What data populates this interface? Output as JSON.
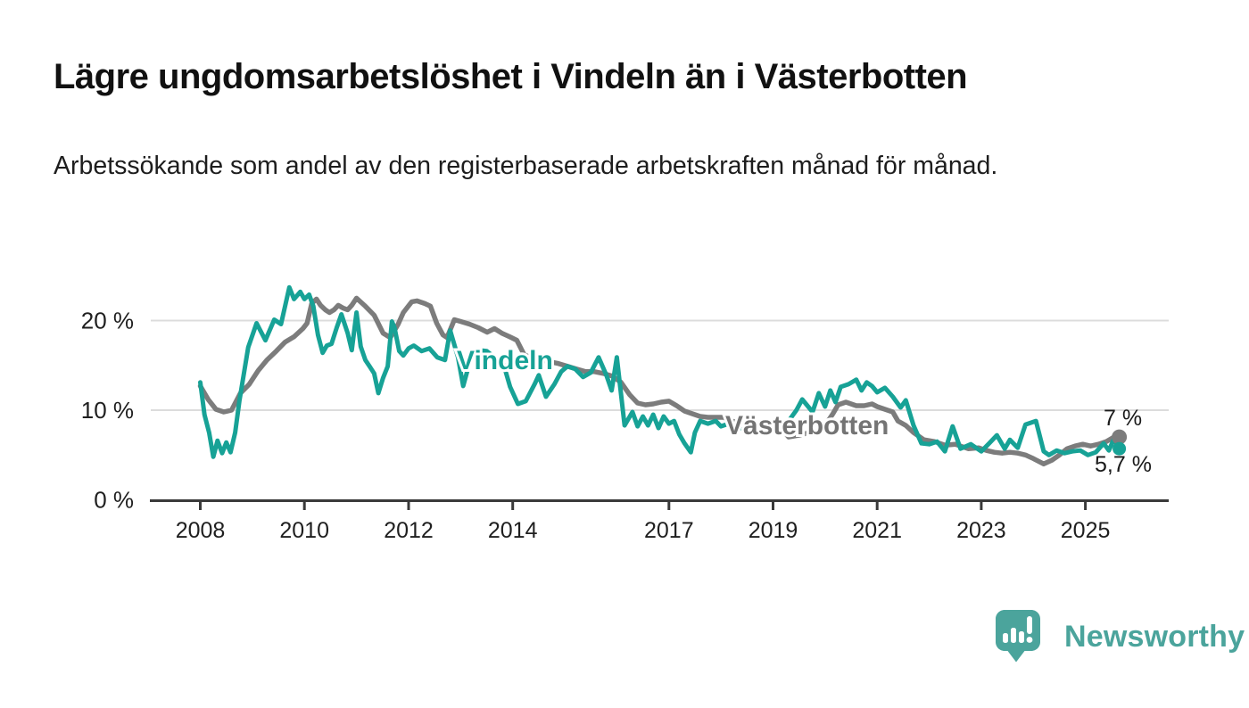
{
  "title": "Lägre ungdomsarbetslöshet i Vindeln än i Västerbotten",
  "subtitle": "Arbetssökande som andel av den registerbaserade arbetskraften månad för månad.",
  "branding": {
    "logo_text": "Newsworthy",
    "logo_color": "#4ba49c"
  },
  "colors": {
    "vindeln": "#17a296",
    "vasterbotten": "#7c7c7c",
    "vasterbotten_label": "#747474",
    "grid": "#dcdcdc",
    "axis": "#3a3a3a",
    "value_label": "#1a1a1a"
  },
  "chart_data": {
    "type": "line",
    "unit": "%",
    "x_axis": {
      "ticks": [
        2008,
        2010,
        2012,
        2014,
        2017,
        2019,
        2021,
        2023,
        2025
      ],
      "range": [
        2007.1,
        2026.6
      ]
    },
    "y_axis": {
      "ticks": [
        {
          "value": 20,
          "label": "20 %"
        },
        {
          "value": 10,
          "label": "10 %"
        },
        {
          "value": 0,
          "label": "0 %"
        }
      ],
      "range": [
        0,
        26
      ],
      "grid": true
    },
    "series": [
      {
        "name": "Vindeln",
        "color": "#17a296",
        "end_label": "5,7 %",
        "end_value": 5.7,
        "points": [
          [
            2008.0,
            13.1
          ],
          [
            2008.08,
            9.5
          ],
          [
            2008.17,
            7.5
          ],
          [
            2008.25,
            4.8
          ],
          [
            2008.33,
            6.6
          ],
          [
            2008.42,
            5.2
          ],
          [
            2008.5,
            6.4
          ],
          [
            2008.58,
            5.3
          ],
          [
            2008.67,
            7.5
          ],
          [
            2008.75,
            11.0
          ],
          [
            2008.92,
            17.0
          ],
          [
            2009.08,
            19.7
          ],
          [
            2009.25,
            17.8
          ],
          [
            2009.42,
            20.1
          ],
          [
            2009.55,
            19.6
          ],
          [
            2009.71,
            23.7
          ],
          [
            2009.8,
            22.4
          ],
          [
            2009.92,
            23.2
          ],
          [
            2010.0,
            22.4
          ],
          [
            2010.09,
            22.9
          ],
          [
            2010.17,
            21.6
          ],
          [
            2010.26,
            18.4
          ],
          [
            2010.35,
            16.4
          ],
          [
            2010.43,
            17.2
          ],
          [
            2010.52,
            17.4
          ],
          [
            2010.62,
            19.2
          ],
          [
            2010.71,
            20.7
          ],
          [
            2010.83,
            18.6
          ],
          [
            2010.91,
            16.7
          ],
          [
            2011.0,
            20.9
          ],
          [
            2011.08,
            17.1
          ],
          [
            2011.17,
            15.6
          ],
          [
            2011.25,
            14.9
          ],
          [
            2011.34,
            14.1
          ],
          [
            2011.42,
            11.9
          ],
          [
            2011.51,
            13.6
          ],
          [
            2011.6,
            14.9
          ],
          [
            2011.68,
            19.9
          ],
          [
            2011.73,
            19.2
          ],
          [
            2011.82,
            16.6
          ],
          [
            2011.9,
            16.1
          ],
          [
            2012.0,
            16.9
          ],
          [
            2012.1,
            17.2
          ],
          [
            2012.25,
            16.6
          ],
          [
            2012.4,
            16.9
          ],
          [
            2012.55,
            15.9
          ],
          [
            2012.7,
            15.6
          ],
          [
            2012.8,
            18.9
          ],
          [
            2012.95,
            15.9
          ],
          [
            2013.05,
            12.7
          ],
          [
            2013.2,
            15.9
          ],
          [
            2013.35,
            16.7
          ],
          [
            2013.5,
            16.6
          ],
          [
            2013.65,
            15.9
          ],
          [
            2013.8,
            15.6
          ],
          [
            2013.95,
            12.6
          ],
          [
            2014.1,
            10.7
          ],
          [
            2014.25,
            11.0
          ],
          [
            2014.42,
            12.9
          ],
          [
            2014.5,
            13.9
          ],
          [
            2014.64,
            11.5
          ],
          [
            2014.8,
            12.9
          ],
          [
            2014.93,
            14.3
          ],
          [
            2015.05,
            14.9
          ],
          [
            2015.2,
            14.6
          ],
          [
            2015.35,
            13.7
          ],
          [
            2015.5,
            14.2
          ],
          [
            2015.65,
            15.9
          ],
          [
            2015.8,
            13.9
          ],
          [
            2015.9,
            12.2
          ],
          [
            2016.0,
            15.9
          ],
          [
            2016.15,
            8.3
          ],
          [
            2016.3,
            9.8
          ],
          [
            2016.4,
            8.2
          ],
          [
            2016.5,
            9.3
          ],
          [
            2016.6,
            8.3
          ],
          [
            2016.7,
            9.5
          ],
          [
            2016.8,
            8.0
          ],
          [
            2016.9,
            9.3
          ],
          [
            2017.0,
            8.5
          ],
          [
            2017.1,
            8.8
          ],
          [
            2017.2,
            7.3
          ],
          [
            2017.3,
            6.3
          ],
          [
            2017.42,
            5.3
          ],
          [
            2017.5,
            7.5
          ],
          [
            2017.6,
            8.8
          ],
          [
            2017.75,
            8.5
          ],
          [
            2017.9,
            8.8
          ],
          [
            2018.0,
            8.2
          ],
          [
            2018.15,
            8.5
          ],
          [
            2018.3,
            7.8
          ],
          [
            2018.45,
            8.2
          ],
          [
            2018.6,
            7.5
          ],
          [
            2018.75,
            7.8
          ],
          [
            2018.9,
            8.0
          ],
          [
            2019.0,
            7.8
          ],
          [
            2019.15,
            8.3
          ],
          [
            2019.3,
            8.8
          ],
          [
            2019.45,
            10.0
          ],
          [
            2019.56,
            11.2
          ],
          [
            2019.76,
            9.8
          ],
          [
            2019.88,
            11.9
          ],
          [
            2020.0,
            10.4
          ],
          [
            2020.1,
            12.2
          ],
          [
            2020.2,
            10.9
          ],
          [
            2020.3,
            12.6
          ],
          [
            2020.45,
            12.9
          ],
          [
            2020.6,
            13.4
          ],
          [
            2020.7,
            12.2
          ],
          [
            2020.8,
            13.1
          ],
          [
            2020.9,
            12.7
          ],
          [
            2021.0,
            12.0
          ],
          [
            2021.15,
            12.5
          ],
          [
            2021.3,
            11.5
          ],
          [
            2021.45,
            10.3
          ],
          [
            2021.55,
            11.1
          ],
          [
            2021.7,
            8.3
          ],
          [
            2021.85,
            6.3
          ],
          [
            2022.0,
            6.2
          ],
          [
            2022.15,
            6.5
          ],
          [
            2022.3,
            5.4
          ],
          [
            2022.45,
            8.2
          ],
          [
            2022.6,
            5.7
          ],
          [
            2022.8,
            6.2
          ],
          [
            2023.0,
            5.4
          ],
          [
            2023.15,
            6.3
          ],
          [
            2023.3,
            7.2
          ],
          [
            2023.45,
            5.7
          ],
          [
            2023.55,
            6.7
          ],
          [
            2023.7,
            5.8
          ],
          [
            2023.85,
            8.4
          ],
          [
            2024.05,
            8.8
          ],
          [
            2024.2,
            5.4
          ],
          [
            2024.3,
            5.0
          ],
          [
            2024.45,
            5.5
          ],
          [
            2024.6,
            5.2
          ],
          [
            2024.75,
            5.4
          ],
          [
            2024.9,
            5.5
          ],
          [
            2025.05,
            5.0
          ],
          [
            2025.2,
            5.3
          ],
          [
            2025.35,
            6.3
          ],
          [
            2025.45,
            5.5
          ],
          [
            2025.55,
            6.8
          ],
          [
            2025.65,
            5.7
          ]
        ]
      },
      {
        "name": "Västerbotten",
        "color": "#7c7c7c",
        "end_label": "7 %",
        "end_value": 7.0,
        "points": [
          [
            2008.0,
            12.7
          ],
          [
            2008.15,
            11.2
          ],
          [
            2008.3,
            10.1
          ],
          [
            2008.45,
            9.8
          ],
          [
            2008.6,
            10.0
          ],
          [
            2008.77,
            11.9
          ],
          [
            2008.94,
            12.9
          ],
          [
            2009.11,
            14.4
          ],
          [
            2009.28,
            15.6
          ],
          [
            2009.46,
            16.6
          ],
          [
            2009.63,
            17.6
          ],
          [
            2009.8,
            18.2
          ],
          [
            2009.97,
            19.1
          ],
          [
            2010.05,
            19.7
          ],
          [
            2010.14,
            21.9
          ],
          [
            2010.23,
            22.4
          ],
          [
            2010.31,
            21.7
          ],
          [
            2010.4,
            21.2
          ],
          [
            2010.48,
            20.9
          ],
          [
            2010.57,
            21.2
          ],
          [
            2010.65,
            21.7
          ],
          [
            2010.74,
            21.4
          ],
          [
            2010.83,
            21.2
          ],
          [
            2010.91,
            21.7
          ],
          [
            2011.0,
            22.5
          ],
          [
            2011.17,
            21.6
          ],
          [
            2011.34,
            20.6
          ],
          [
            2011.51,
            18.6
          ],
          [
            2011.65,
            18.1
          ],
          [
            2011.8,
            19.6
          ],
          [
            2011.9,
            20.9
          ],
          [
            2012.06,
            22.1
          ],
          [
            2012.16,
            22.2
          ],
          [
            2012.31,
            21.9
          ],
          [
            2012.42,
            21.6
          ],
          [
            2012.54,
            19.7
          ],
          [
            2012.66,
            18.4
          ],
          [
            2012.74,
            18.1
          ],
          [
            2012.88,
            20.1
          ],
          [
            2013.0,
            19.9
          ],
          [
            2013.17,
            19.6
          ],
          [
            2013.34,
            19.2
          ],
          [
            2013.51,
            18.7
          ],
          [
            2013.65,
            19.1
          ],
          [
            2013.79,
            18.6
          ],
          [
            2013.94,
            18.2
          ],
          [
            2014.08,
            17.8
          ],
          [
            2014.22,
            16.2
          ],
          [
            2014.37,
            15.8
          ],
          [
            2014.54,
            15.6
          ],
          [
            2014.71,
            15.4
          ],
          [
            2014.88,
            15.2
          ],
          [
            2015.05,
            14.9
          ],
          [
            2015.22,
            14.6
          ],
          [
            2015.4,
            14.3
          ],
          [
            2015.57,
            14.3
          ],
          [
            2015.74,
            14.1
          ],
          [
            2015.91,
            13.8
          ],
          [
            2016.08,
            13.1
          ],
          [
            2016.25,
            11.7
          ],
          [
            2016.4,
            10.8
          ],
          [
            2016.55,
            10.6
          ],
          [
            2016.7,
            10.7
          ],
          [
            2016.85,
            10.9
          ],
          [
            2017.0,
            11.0
          ],
          [
            2017.15,
            10.5
          ],
          [
            2017.3,
            9.9
          ],
          [
            2017.45,
            9.6
          ],
          [
            2017.6,
            9.3
          ],
          [
            2017.75,
            9.2
          ],
          [
            2017.9,
            9.2
          ],
          [
            2018.05,
            9.2
          ],
          [
            2018.2,
            8.8
          ],
          [
            2018.4,
            8.5
          ],
          [
            2018.6,
            8.3
          ],
          [
            2018.8,
            8.2
          ],
          [
            2019.0,
            7.8
          ],
          [
            2019.2,
            7.7
          ],
          [
            2019.3,
            7.0
          ],
          [
            2019.5,
            7.2
          ],
          [
            2019.7,
            7.5
          ],
          [
            2019.9,
            7.7
          ],
          [
            2020.0,
            8.3
          ],
          [
            2020.15,
            9.6
          ],
          [
            2020.25,
            10.6
          ],
          [
            2020.4,
            10.9
          ],
          [
            2020.6,
            10.5
          ],
          [
            2020.75,
            10.5
          ],
          [
            2020.9,
            10.7
          ],
          [
            2021.0,
            10.4
          ],
          [
            2021.15,
            10.1
          ],
          [
            2021.3,
            9.8
          ],
          [
            2021.4,
            8.8
          ],
          [
            2021.55,
            8.3
          ],
          [
            2021.7,
            7.5
          ],
          [
            2021.9,
            6.7
          ],
          [
            2022.1,
            6.5
          ],
          [
            2022.3,
            6.1
          ],
          [
            2022.5,
            6.2
          ],
          [
            2022.75,
            5.7
          ],
          [
            2022.95,
            5.8
          ],
          [
            2023.1,
            5.5
          ],
          [
            2023.25,
            5.3
          ],
          [
            2023.4,
            5.2
          ],
          [
            2023.55,
            5.3
          ],
          [
            2023.7,
            5.2
          ],
          [
            2023.85,
            5.0
          ],
          [
            2024.0,
            4.6
          ],
          [
            2024.2,
            4.0
          ],
          [
            2024.35,
            4.4
          ],
          [
            2024.5,
            5.0
          ],
          [
            2024.65,
            5.7
          ],
          [
            2024.8,
            6.0
          ],
          [
            2024.95,
            6.2
          ],
          [
            2025.1,
            6.0
          ],
          [
            2025.25,
            6.2
          ],
          [
            2025.4,
            6.5
          ],
          [
            2025.55,
            7.0
          ],
          [
            2025.65,
            7.0
          ]
        ]
      }
    ]
  }
}
